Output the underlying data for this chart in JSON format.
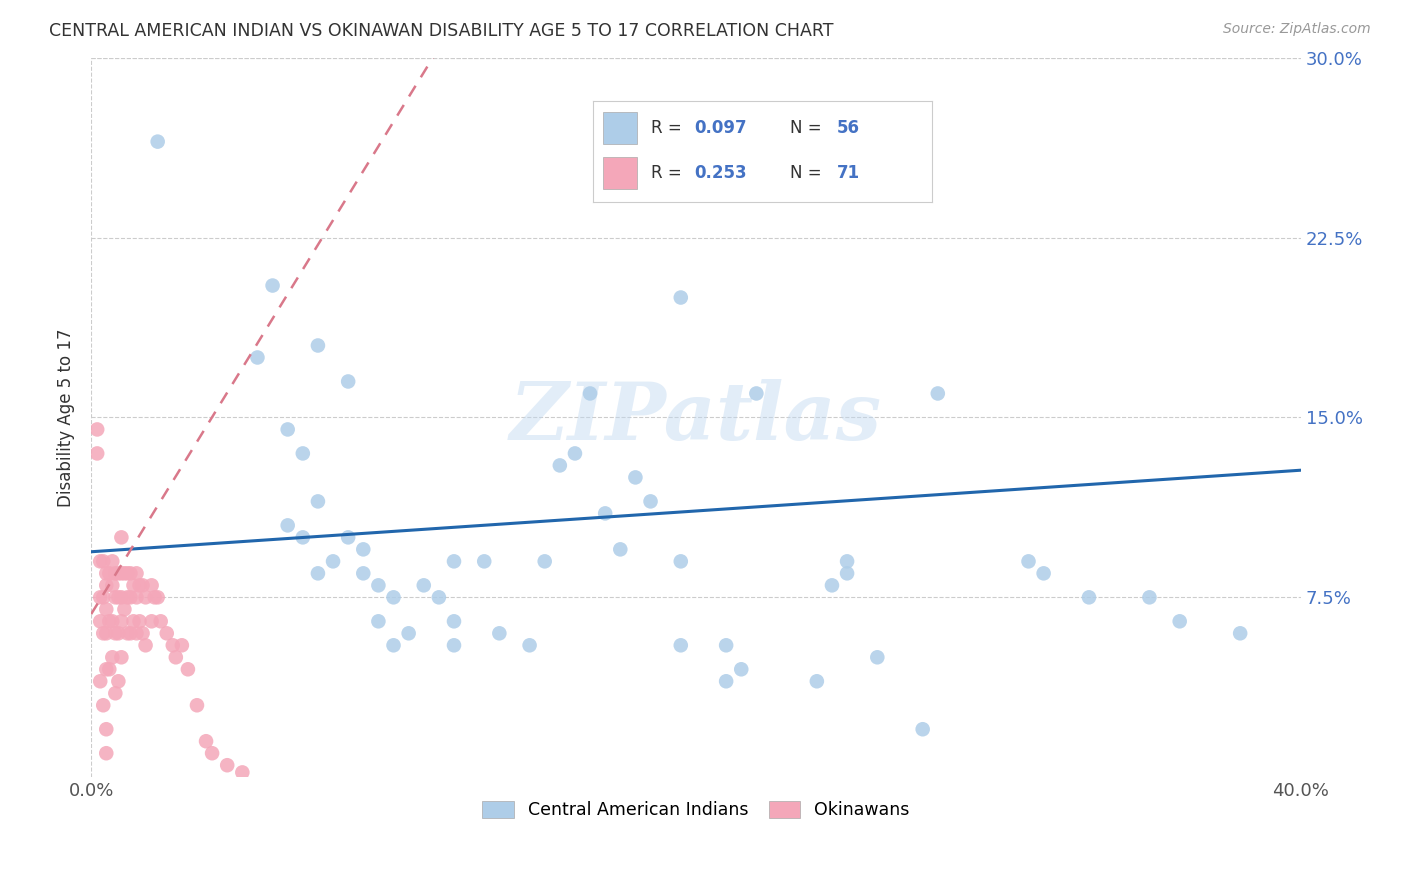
{
  "title": "CENTRAL AMERICAN INDIAN VS OKINAWAN DISABILITY AGE 5 TO 17 CORRELATION CHART",
  "source": "Source: ZipAtlas.com",
  "ylabel": "Disability Age 5 to 17",
  "xlim": [
    0.0,
    0.4
  ],
  "ylim": [
    0.0,
    0.3
  ],
  "yticks": [
    0.075,
    0.15,
    0.225,
    0.3
  ],
  "ytick_labels": [
    "7.5%",
    "15.0%",
    "22.5%",
    "30.0%"
  ],
  "blue_color": "#aecde8",
  "pink_color": "#f4a7b9",
  "line_blue_color": "#2166ac",
  "line_pink_color": "#d9788a",
  "watermark": "ZIPatlas",
  "blue_line_x": [
    0.0,
    0.4
  ],
  "blue_line_y": [
    0.094,
    0.128
  ],
  "pink_line_x": [
    0.0,
    0.113
  ],
  "pink_line_y": [
    0.068,
    0.3
  ],
  "blue_points_x": [
    0.022,
    0.06,
    0.075,
    0.085,
    0.055,
    0.065,
    0.07,
    0.075,
    0.065,
    0.07,
    0.085,
    0.09,
    0.08,
    0.075,
    0.09,
    0.095,
    0.1,
    0.115,
    0.095,
    0.1,
    0.105,
    0.11,
    0.12,
    0.12,
    0.13,
    0.135,
    0.12,
    0.145,
    0.15,
    0.155,
    0.17,
    0.175,
    0.185,
    0.195,
    0.195,
    0.21,
    0.215,
    0.21,
    0.22,
    0.24,
    0.245,
    0.25,
    0.25,
    0.26,
    0.275,
    0.31,
    0.315,
    0.35,
    0.36,
    0.38,
    0.16,
    0.165,
    0.18,
    0.195,
    0.28,
    0.33
  ],
  "blue_points_y": [
    0.265,
    0.205,
    0.18,
    0.165,
    0.175,
    0.145,
    0.135,
    0.115,
    0.105,
    0.1,
    0.1,
    0.095,
    0.09,
    0.085,
    0.085,
    0.08,
    0.075,
    0.075,
    0.065,
    0.055,
    0.06,
    0.08,
    0.09,
    0.065,
    0.09,
    0.06,
    0.055,
    0.055,
    0.09,
    0.13,
    0.11,
    0.095,
    0.115,
    0.09,
    0.055,
    0.055,
    0.045,
    0.04,
    0.16,
    0.04,
    0.08,
    0.085,
    0.09,
    0.05,
    0.02,
    0.09,
    0.085,
    0.075,
    0.065,
    0.06,
    0.135,
    0.16,
    0.125,
    0.2,
    0.16,
    0.075
  ],
  "pink_points_x": [
    0.002,
    0.002,
    0.003,
    0.003,
    0.003,
    0.003,
    0.004,
    0.004,
    0.004,
    0.004,
    0.005,
    0.005,
    0.005,
    0.005,
    0.005,
    0.005,
    0.005,
    0.006,
    0.006,
    0.006,
    0.007,
    0.007,
    0.007,
    0.007,
    0.008,
    0.008,
    0.008,
    0.008,
    0.009,
    0.009,
    0.009,
    0.009,
    0.01,
    0.01,
    0.01,
    0.01,
    0.01,
    0.011,
    0.011,
    0.012,
    0.012,
    0.012,
    0.013,
    0.013,
    0.013,
    0.014,
    0.014,
    0.015,
    0.015,
    0.015,
    0.016,
    0.016,
    0.017,
    0.017,
    0.018,
    0.018,
    0.02,
    0.02,
    0.021,
    0.022,
    0.023,
    0.025,
    0.027,
    0.028,
    0.03,
    0.032,
    0.035,
    0.038,
    0.04,
    0.045,
    0.05
  ],
  "pink_points_y": [
    0.145,
    0.135,
    0.09,
    0.075,
    0.065,
    0.04,
    0.09,
    0.075,
    0.06,
    0.03,
    0.085,
    0.08,
    0.07,
    0.06,
    0.045,
    0.02,
    0.01,
    0.085,
    0.065,
    0.045,
    0.09,
    0.08,
    0.065,
    0.05,
    0.085,
    0.075,
    0.06,
    0.035,
    0.085,
    0.075,
    0.06,
    0.04,
    0.1,
    0.085,
    0.075,
    0.065,
    0.05,
    0.085,
    0.07,
    0.085,
    0.075,
    0.06,
    0.085,
    0.075,
    0.06,
    0.08,
    0.065,
    0.085,
    0.075,
    0.06,
    0.08,
    0.065,
    0.08,
    0.06,
    0.075,
    0.055,
    0.08,
    0.065,
    0.075,
    0.075,
    0.065,
    0.06,
    0.055,
    0.05,
    0.055,
    0.045,
    0.03,
    0.015,
    0.01,
    0.005,
    0.002
  ]
}
